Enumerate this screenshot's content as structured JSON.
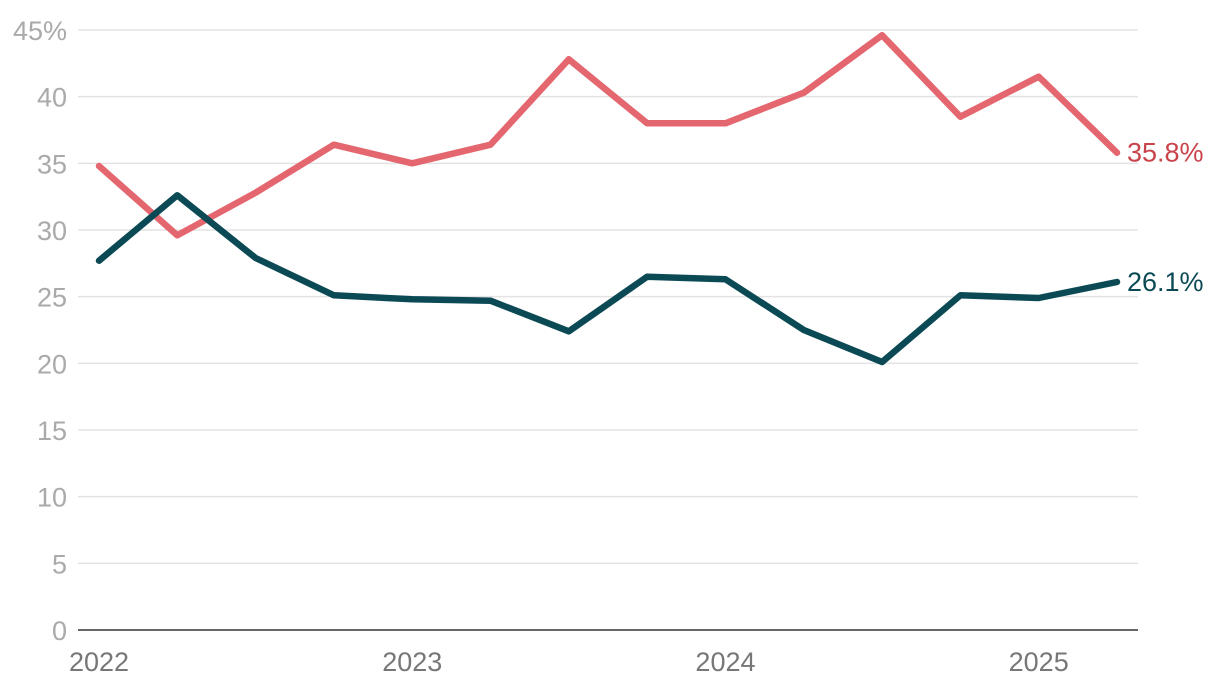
{
  "chart_data": {
    "type": "line",
    "title": "",
    "xlabel": "",
    "ylabel": "",
    "ylim": [
      0,
      45
    ],
    "yticks": [
      0,
      5,
      10,
      15,
      20,
      25,
      30,
      35,
      40,
      45
    ],
    "ytick_labels": [
      "0",
      "5",
      "10",
      "15",
      "20",
      "25",
      "30",
      "35",
      "40",
      "45%"
    ],
    "xlim": [
      2022.0,
      2025.375
    ],
    "xticks": [
      2022,
      2023,
      2024,
      2025
    ],
    "xtick_labels": [
      "2022",
      "2023",
      "2024",
      "2025"
    ],
    "x": [
      2022.0,
      2022.25,
      2022.5,
      2022.75,
      2023.0,
      2023.25,
      2023.5,
      2023.75,
      2024.0,
      2024.25,
      2024.5,
      2024.75,
      2025.0,
      2025.25
    ],
    "series": [
      {
        "name": "red-series",
        "color": "#e4666e",
        "label_color": "#c9434b",
        "end_label": "35.8%",
        "values": [
          34.8,
          29.6,
          32.8,
          36.4,
          35.0,
          36.4,
          42.8,
          38.0,
          38.0,
          40.3,
          44.6,
          38.5,
          41.5,
          35.8
        ]
      },
      {
        "name": "teal-series",
        "color": "#0b4a55",
        "label_color": "#0b4a55",
        "end_label": "26.1%",
        "values": [
          27.7,
          32.6,
          27.9,
          25.1,
          24.8,
          24.7,
          22.4,
          26.5,
          26.3,
          22.5,
          20.1,
          25.1,
          24.9,
          26.1
        ]
      }
    ],
    "grid": true,
    "legend": "none"
  }
}
